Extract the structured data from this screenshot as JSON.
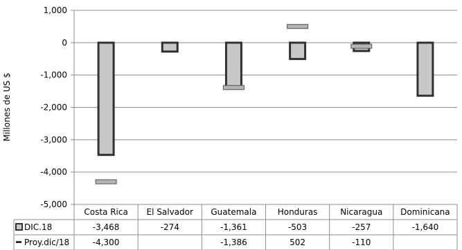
{
  "chart_data": {
    "type": "bar",
    "ylabel": "Millones de US $",
    "ylim": [
      -5000,
      1000
    ],
    "yticks": [
      1000,
      0,
      -1000,
      -2000,
      -3000,
      -4000,
      -5000
    ],
    "ytick_labels": [
      "1,000",
      "0",
      "-1,000",
      "-2,000",
      "-3,000",
      "-4,000",
      "-5,000"
    ],
    "grid": true,
    "categories": [
      "Costa Rica",
      "El Salvador",
      "Guatemala",
      "Honduras",
      "Nicaragua",
      "Dominicana"
    ],
    "series": [
      {
        "name": "DIC.18",
        "kind": "bar",
        "values": [
          -3468,
          -274,
          -1361,
          -503,
          -257,
          -1640
        ],
        "labels": [
          "-3,468",
          "-274",
          "-1,361",
          "-503",
          "-257",
          "-1,640"
        ],
        "color": "#c8c8c8"
      },
      {
        "name": "Proy.dic/18",
        "kind": "marker",
        "values": [
          -4300,
          null,
          -1386,
          502,
          -110,
          null
        ],
        "labels": [
          "-4,300",
          "",
          "-1,386",
          "502",
          "-110",
          ""
        ],
        "color": "#b4b4b4"
      }
    ]
  }
}
